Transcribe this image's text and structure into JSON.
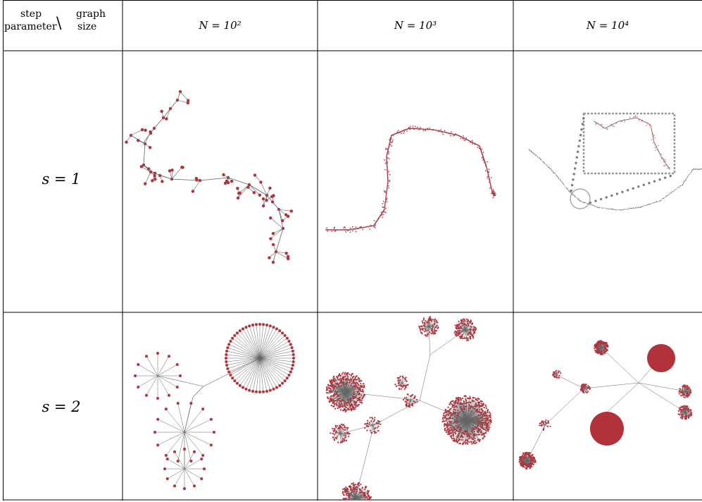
{
  "header": {
    "corner_top_left": "step",
    "corner_bottom_left": "parameter",
    "corner_separator": "\\",
    "corner_top_right": "graph",
    "corner_bottom_right": "size",
    "columns": [
      "N = 10²",
      "N = 10³",
      "N = 10⁴"
    ]
  },
  "rows": [
    {
      "label": "s = 1"
    },
    {
      "label": "s = 2"
    }
  ],
  "colors": {
    "node": "#b2323c",
    "edge": "#666666",
    "grid": "#000000",
    "zoom_box": "#999999"
  }
}
